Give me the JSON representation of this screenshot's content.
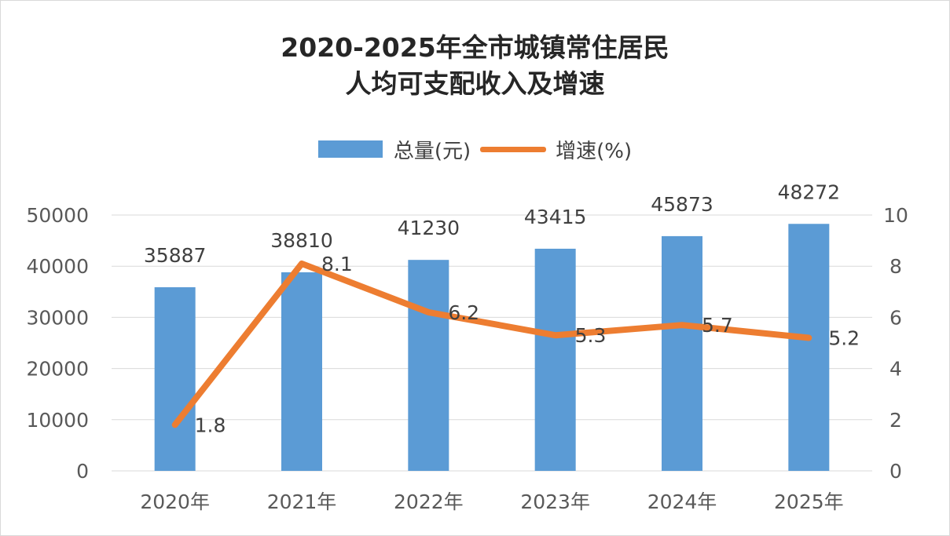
{
  "chart_data": {
    "type": "bar",
    "title_lines": [
      "2020-2025年全市城镇常住居民",
      "人均可支配收入及增速"
    ],
    "categories": [
      "2020年",
      "2021年",
      "2022年",
      "2023年",
      "2024年",
      "2025年"
    ],
    "series": [
      {
        "name": "总量(元)",
        "type": "bar",
        "axis": "left",
        "color": "#5b9bd5",
        "values": [
          35887,
          38810,
          41230,
          43415,
          45873,
          48272
        ]
      },
      {
        "name": "增速(%)",
        "type": "line",
        "axis": "right",
        "color": "#ed7d31",
        "values": [
          1.8,
          8.1,
          6.2,
          5.3,
          5.7,
          5.2
        ]
      }
    ],
    "y_left": {
      "ylim": [
        0,
        50000
      ],
      "ticks": [
        "0",
        "10000",
        "20000",
        "30000",
        "40000",
        "50000"
      ]
    },
    "y_right": {
      "ylim": [
        0,
        10
      ],
      "ticks": [
        "0",
        "2",
        "4",
        "6",
        "8",
        "10"
      ]
    },
    "bar_labels": [
      "35887",
      "38810",
      "41230",
      "43415",
      "45873",
      "48272"
    ],
    "line_labels": [
      "1.8",
      "8.1",
      "6.2",
      "5.3",
      "5.7",
      "5.2"
    ],
    "grid": "horizontal",
    "legend_position": "top"
  }
}
